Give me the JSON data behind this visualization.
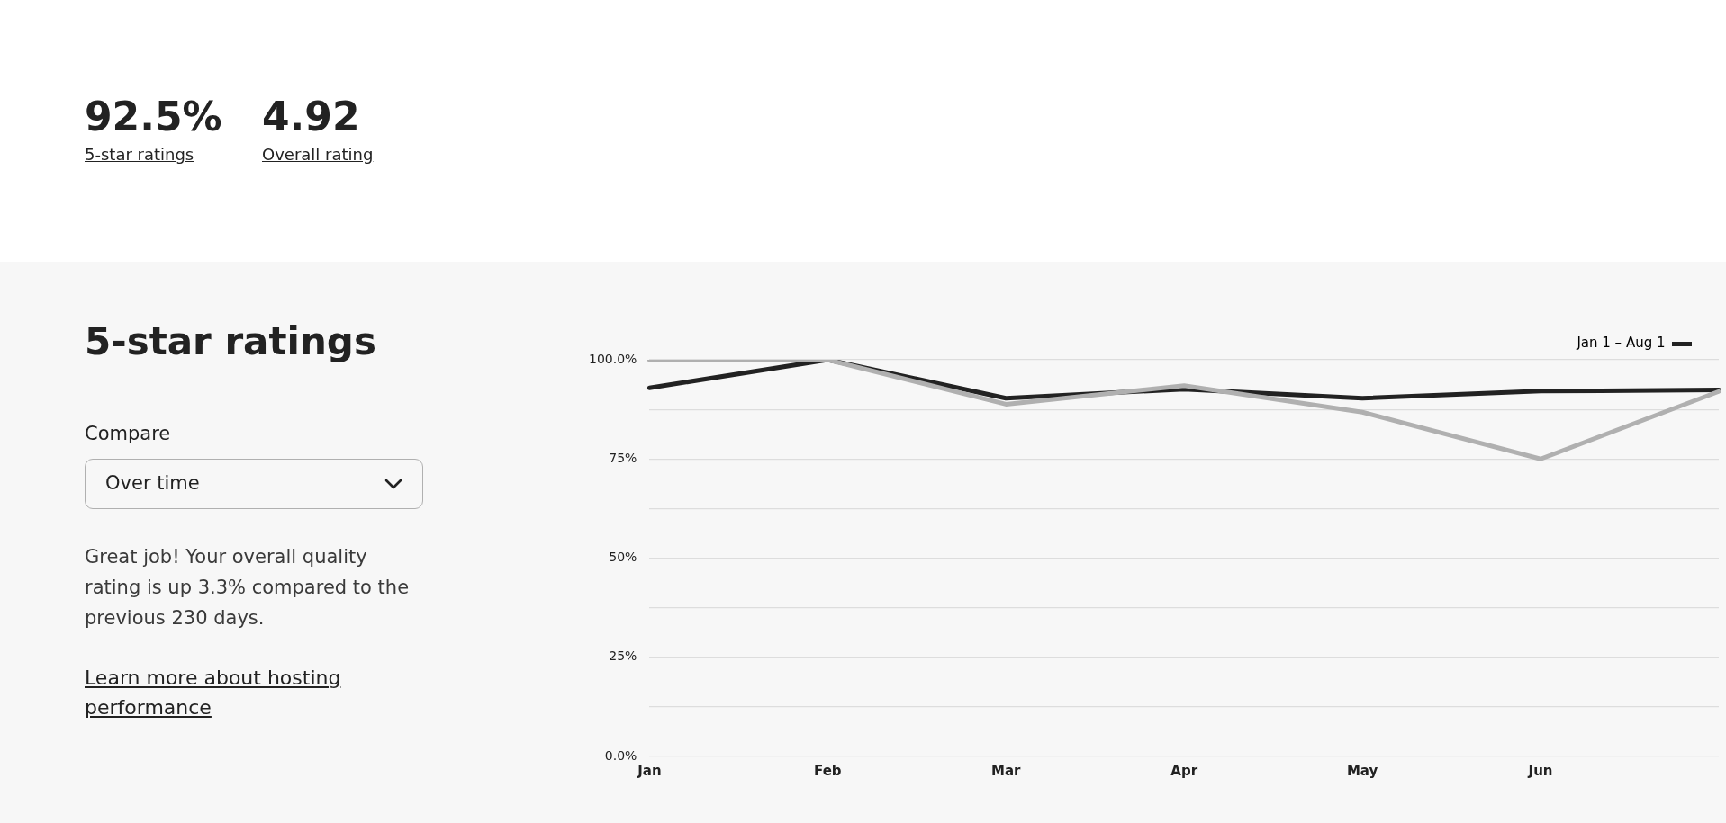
{
  "chart_data": {
    "type": "line",
    "title": "5-star ratings",
    "categories": [
      "Jan",
      "Feb",
      "Mar",
      "Apr",
      "May",
      "Jun",
      null
    ],
    "series": [
      {
        "name": "Jan 1 – Aug 1",
        "color": "#222222",
        "values": [
          92.9,
          100,
          90.3,
          92.6,
          90.3,
          92.1,
          92.4
        ]
      },
      {
        "color": "#b0b0b0",
        "values": [
          100,
          100,
          88.8,
          93.5,
          86.8,
          75,
          92
        ]
      }
    ],
    "ylim": [
      0,
      100
    ],
    "yticks": [
      {
        "value": 0,
        "label": "0.0%"
      },
      {
        "value": 12.5,
        "label": null
      },
      {
        "value": 25,
        "label": "25%"
      },
      {
        "value": 37.5,
        "label": null
      },
      {
        "value": 50,
        "label": "50%"
      },
      {
        "value": 62.5,
        "label": null
      },
      {
        "value": 75,
        "label": "75%"
      },
      {
        "value": 87.5,
        "label": null
      },
      {
        "value": 100,
        "label": "100.0%"
      }
    ],
    "grid": "y",
    "legend": "top right",
    "marker": "none",
    "line_style": "solid",
    "annotations": [
      "92.5%",
      "5-star ratings",
      "4.92",
      "Overall rating",
      "Compare",
      "Over time",
      "Great job! Your overall quality rating is up 3.3% compared to the previous 230 days.",
      "Learn more about hosting performance"
    ]
  }
}
